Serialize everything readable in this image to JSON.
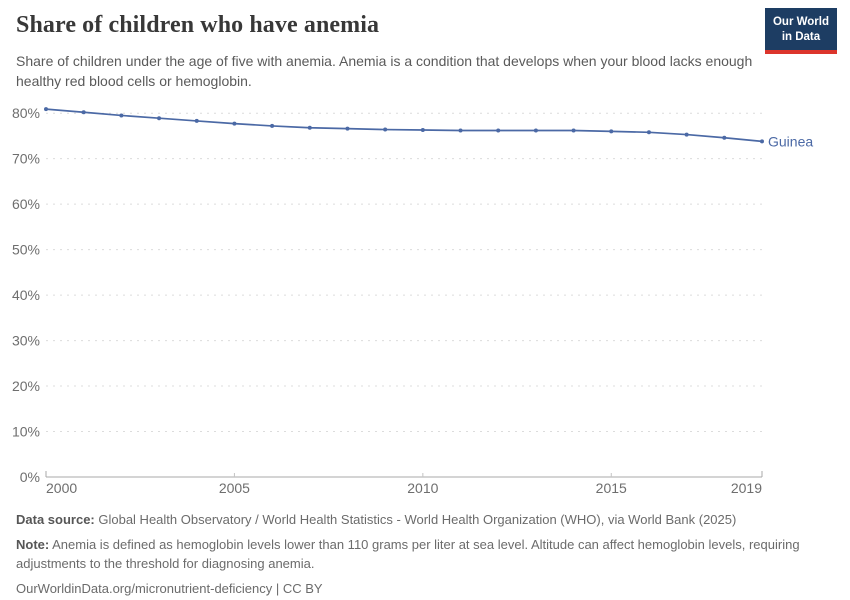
{
  "header": {
    "title": "Share of children who have anemia",
    "subtitle": "Share of children under the age of five with anemia. Anemia is a condition that develops when your blood lacks enough healthy red blood cells or hemoglobin.",
    "logo": {
      "line1": "Our World",
      "line2": "in Data"
    }
  },
  "chart_data": {
    "type": "line",
    "title": "Share of children who have anemia",
    "x": [
      2000,
      2001,
      2002,
      2003,
      2004,
      2005,
      2006,
      2007,
      2008,
      2009,
      2010,
      2011,
      2012,
      2013,
      2014,
      2015,
      2016,
      2017,
      2018,
      2019
    ],
    "series": [
      {
        "name": "Guinea",
        "color": "#4b69a5",
        "values": [
          80.9,
          80.2,
          79.5,
          78.9,
          78.3,
          77.7,
          77.2,
          76.8,
          76.6,
          76.4,
          76.3,
          76.2,
          76.2,
          76.2,
          76.2,
          76.0,
          75.8,
          75.3,
          74.6,
          73.8
        ]
      }
    ],
    "xlabel": "",
    "ylabel": "",
    "xlim": [
      2000,
      2019
    ],
    "ylim": [
      0,
      84
    ],
    "x_ticks": [
      {
        "value": 2000,
        "label": "2000"
      },
      {
        "value": 2005,
        "label": "2005"
      },
      {
        "value": 2010,
        "label": "2010"
      },
      {
        "value": 2015,
        "label": "2015"
      },
      {
        "value": 2019,
        "label": "2019"
      }
    ],
    "y_ticks": [
      {
        "value": 0,
        "label": "0%"
      },
      {
        "value": 10,
        "label": "10%"
      },
      {
        "value": 20,
        "label": "20%"
      },
      {
        "value": 30,
        "label": "30%"
      },
      {
        "value": 40,
        "label": "40%"
      },
      {
        "value": 50,
        "label": "50%"
      },
      {
        "value": 60,
        "label": "60%"
      },
      {
        "value": 70,
        "label": "70%"
      },
      {
        "value": 80,
        "label": "80%"
      }
    ],
    "grid": "horizontal-dashed",
    "legend": "line-end-label"
  },
  "footer": {
    "data_source_label": "Data source:",
    "data_source_text": " Global Health Observatory / World Health Statistics - World Health Organization (WHO), via World Bank (2025)",
    "note_label": "Note:",
    "note_text": " Anemia is defined as hemoglobin levels lower than 110 grams per liter at sea level. Altitude can affect hemoglobin levels, requiring adjustments to the threshold for diagnosing anemia.",
    "license": "OurWorldinData.org/micronutrient-deficiency | CC BY"
  },
  "colors": {
    "line": "#4b69a5",
    "grid": "#dcdcdc",
    "axis": "#a8a8a8",
    "minor_tick": "#c4c4c4",
    "tick_text": "#6e6e6e",
    "title": "#383838",
    "subtitle": "#5a5a5a",
    "logo_bg": "#1d3d63",
    "logo_red": "#dc352c"
  }
}
